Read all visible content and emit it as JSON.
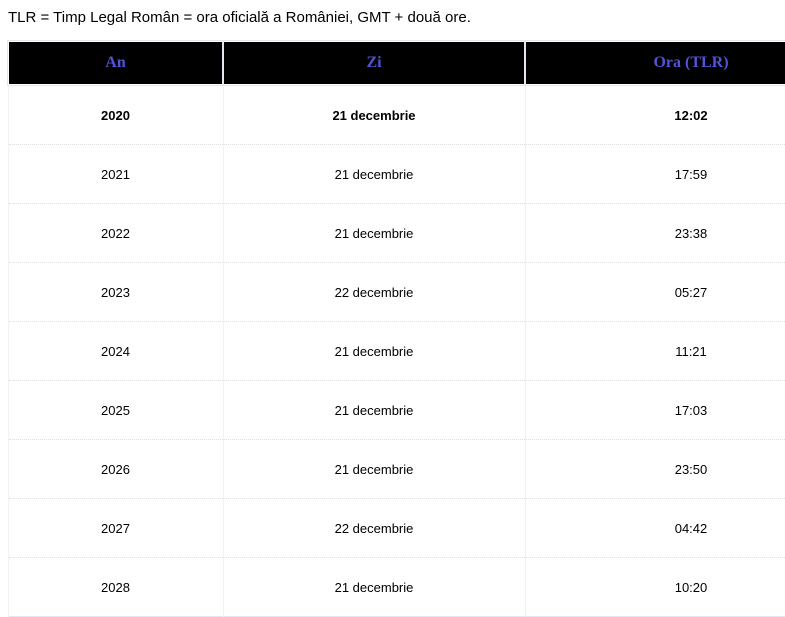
{
  "intro": {
    "text": "TLR = Timp Legal Român = ora oficială a României, GMT + două ore."
  },
  "table": {
    "headers": [
      "An",
      "Zi",
      "Ora (TLR)"
    ],
    "rows": [
      {
        "an": "2020",
        "zi": "21 decembrie",
        "ora": "12:02",
        "bold": true
      },
      {
        "an": "2021",
        "zi": "21 decembrie",
        "ora": "17:59",
        "bold": false
      },
      {
        "an": "2022",
        "zi": "21 decembrie",
        "ora": "23:38",
        "bold": false
      },
      {
        "an": "2023",
        "zi": "22 decembrie",
        "ora": "05:27",
        "bold": false
      },
      {
        "an": "2024",
        "zi": "21 decembrie",
        "ora": "11:21",
        "bold": false
      },
      {
        "an": "2025",
        "zi": "21 decembrie",
        "ora": "17:03",
        "bold": false
      },
      {
        "an": "2026",
        "zi": "21 decembrie",
        "ora": "23:50",
        "bold": false
      },
      {
        "an": "2027",
        "zi": "22 decembrie",
        "ora": "04:42",
        "bold": false
      },
      {
        "an": "2028",
        "zi": "21 decembrie",
        "ora": "10:20",
        "bold": false
      }
    ]
  },
  "colors": {
    "header_background": "#000000",
    "header_text": "#5353d5",
    "body_text": "#000000"
  }
}
